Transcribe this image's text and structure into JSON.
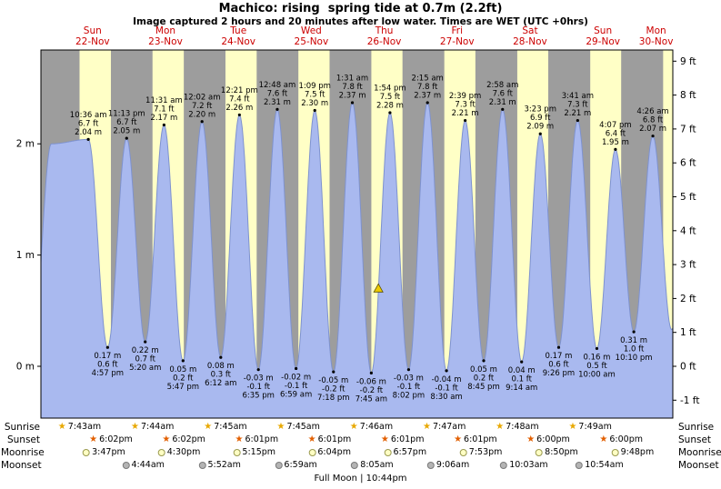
{
  "title": "Machico: rising  spring tide at 0.7m (2.2ft)",
  "subtitle": "Image captured 2 hours and 20 minutes after low water. Times are WET (UTC +0hrs)",
  "footer": "Full Moon | 10:44pm",
  "days": [
    {
      "name": "Sun",
      "date": "22-Nov"
    },
    {
      "name": "Mon",
      "date": "23-Nov"
    },
    {
      "name": "Tue",
      "date": "24-Nov"
    },
    {
      "name": "Wed",
      "date": "25-Nov"
    },
    {
      "name": "Thu",
      "date": "26-Nov"
    },
    {
      "name": "Fri",
      "date": "27-Nov"
    },
    {
      "name": "Sat",
      "date": "28-Nov"
    },
    {
      "name": "Sun",
      "date": "29-Nov"
    },
    {
      "name": "Mon",
      "date": "30-Nov"
    }
  ],
  "chart_data": {
    "type": "area",
    "title": "Machico tide curve 22-Nov to 30-Nov",
    "ylim_m": [
      -0.47,
      2.84
    ],
    "y_axis": {
      "left_unit": "m",
      "right_unit": "ft",
      "left_ticks": [
        {
          "label": "2 m",
          "m": 2
        },
        {
          "label": "1 m",
          "m": 1
        },
        {
          "label": "0 m",
          "m": 0
        }
      ],
      "right_ticks": [
        {
          "label": "9 ft",
          "ft": 9
        },
        {
          "label": "8 ft",
          "ft": 8
        },
        {
          "label": "7 ft",
          "ft": 7
        },
        {
          "label": "6 ft",
          "ft": 6
        },
        {
          "label": "5 ft",
          "ft": 5
        },
        {
          "label": "4 ft",
          "ft": 4
        },
        {
          "label": "3 ft",
          "ft": 3
        },
        {
          "label": "2 ft",
          "ft": 2
        },
        {
          "label": "1 ft",
          "ft": 1
        },
        {
          "label": "0 ft",
          "ft": 0
        },
        {
          "label": "-1 ft",
          "ft": -1
        }
      ]
    },
    "tide_events": [
      {
        "day": 0,
        "type": "high",
        "time": "10:36 am",
        "height_m": 2.04,
        "m_label": "2.04 m",
        "ft_label": "6.7 ft"
      },
      {
        "day": 0,
        "type": "low",
        "time": "4:57 pm",
        "height_m": 0.17,
        "m_label": "0.17 m",
        "ft_label": "0.6 ft"
      },
      {
        "day": 0,
        "type": "high",
        "time": "11:13 pm",
        "height_m": 2.05,
        "m_label": "2.05 m",
        "ft_label": "6.7 ft"
      },
      {
        "day": 1,
        "type": "low",
        "time": "5:20 am",
        "height_m": 0.22,
        "m_label": "0.22 m",
        "ft_label": "0.7 ft"
      },
      {
        "day": 1,
        "type": "high",
        "time": "11:31 am",
        "height_m": 2.17,
        "m_label": "2.17 m",
        "ft_label": "7.1 ft"
      },
      {
        "day": 1,
        "type": "low",
        "time": "5:47 pm",
        "height_m": 0.05,
        "m_label": "0.05 m",
        "ft_label": "0.2 ft"
      },
      {
        "day": 2,
        "type": "high",
        "time": "12:02 am",
        "height_m": 2.2,
        "m_label": "2.20 m",
        "ft_label": "7.2 ft"
      },
      {
        "day": 2,
        "type": "low",
        "time": "6:12 am",
        "height_m": 0.08,
        "m_label": "0.08 m",
        "ft_label": "0.3 ft"
      },
      {
        "day": 2,
        "type": "high",
        "time": "12:21 pm",
        "height_m": 2.26,
        "m_label": "2.26 m",
        "ft_label": "7.4 ft"
      },
      {
        "day": 2,
        "type": "low",
        "time": "6:35 pm",
        "height_m": -0.03,
        "m_label": "-0.03 m",
        "ft_label": "-0.1 ft"
      },
      {
        "day": 3,
        "type": "high",
        "time": "12:48 am",
        "height_m": 2.31,
        "m_label": "2.31 m",
        "ft_label": "7.6 ft"
      },
      {
        "day": 3,
        "type": "low",
        "time": "6:59 am",
        "height_m": -0.02,
        "m_label": "-0.02 m",
        "ft_label": "-0.1 ft"
      },
      {
        "day": 3,
        "type": "high",
        "time": "1:09 pm",
        "height_m": 2.3,
        "m_label": "2.30 m",
        "ft_label": "7.5 ft"
      },
      {
        "day": 3,
        "type": "low",
        "time": "7:18 pm",
        "height_m": -0.05,
        "m_label": "-0.05 m",
        "ft_label": "-0.2 ft"
      },
      {
        "day": 4,
        "type": "high",
        "time": "1:31 am",
        "height_m": 2.37,
        "m_label": "2.37 m",
        "ft_label": "7.8 ft"
      },
      {
        "day": 4,
        "type": "low",
        "time": "7:45 am",
        "height_m": -0.06,
        "m_label": "-0.06 m",
        "ft_label": "-0.2 ft"
      },
      {
        "day": 4,
        "type": "high",
        "time": "1:54 pm",
        "height_m": 2.28,
        "m_label": "2.28 m",
        "ft_label": "7.5 ft"
      },
      {
        "day": 4,
        "type": "low",
        "time": "8:02 pm",
        "height_m": -0.03,
        "m_label": "-0.03 m",
        "ft_label": "-0.1 ft"
      },
      {
        "day": 5,
        "type": "high",
        "time": "2:15 am",
        "height_m": 2.37,
        "m_label": "2.37 m",
        "ft_label": "7.8 ft"
      },
      {
        "day": 5,
        "type": "low",
        "time": "8:30 am",
        "height_m": -0.04,
        "m_label": "-0.04 m",
        "ft_label": "-0.1 ft"
      },
      {
        "day": 5,
        "type": "high",
        "time": "2:39 pm",
        "height_m": 2.21,
        "m_label": "2.21 m",
        "ft_label": "7.3 ft"
      },
      {
        "day": 5,
        "type": "low",
        "time": "8:45 pm",
        "height_m": 0.05,
        "m_label": "0.05 m",
        "ft_label": "0.2 ft"
      },
      {
        "day": 6,
        "type": "high",
        "time": "2:58 am",
        "height_m": 2.31,
        "m_label": "2.31 m",
        "ft_label": "7.6 ft"
      },
      {
        "day": 6,
        "type": "low",
        "time": "9:14 am",
        "height_m": 0.04,
        "m_label": "0.04 m",
        "ft_label": "0.1 ft"
      },
      {
        "day": 6,
        "type": "high",
        "time": "3:23 pm",
        "height_m": 2.09,
        "m_label": "2.09 m",
        "ft_label": "6.9 ft"
      },
      {
        "day": 6,
        "type": "low",
        "time": "9:26 pm",
        "height_m": 0.17,
        "m_label": "0.17 m",
        "ft_label": "0.6 ft"
      },
      {
        "day": 7,
        "type": "high",
        "time": "3:41 am",
        "height_m": 2.21,
        "m_label": "2.21 m",
        "ft_label": "7.3 ft"
      },
      {
        "day": 7,
        "type": "low",
        "time": "10:00 am",
        "height_m": 0.16,
        "m_label": "0.16 m",
        "ft_label": "0.5 ft"
      },
      {
        "day": 7,
        "type": "high",
        "time": "4:07 pm",
        "height_m": 1.95,
        "m_label": "1.95 m",
        "ft_label": "6.4 ft"
      },
      {
        "day": 7,
        "type": "low",
        "time": "10:10 pm",
        "height_m": 0.31,
        "m_label": "0.31 m",
        "ft_label": "1.0 ft"
      },
      {
        "day": 8,
        "type": "high",
        "time": "4:26 am",
        "height_m": 2.07,
        "m_label": "2.07 m",
        "ft_label": "6.8 ft"
      }
    ],
    "edge_events": [
      {
        "t": -7.8,
        "height_m": 0.15
      },
      {
        "t": -1.58,
        "height_m": 2.0
      },
      {
        "t": 202.6,
        "height_m": 0.33
      },
      {
        "t": 208.9,
        "height_m": 1.95
      }
    ],
    "marker": {
      "t_hours": 106.08,
      "height_m": 0.7
    },
    "colors": {
      "day_band": "#ffffc6",
      "night_band": "#9d9d9d",
      "tide_fill": "#a9b9ef",
      "tide_stroke": "#7e92cf",
      "day_label": "#cc0000",
      "marker_fill": "#eecb00",
      "sunrise_icon": "#e8a800",
      "sunset_icon": "#e25f00",
      "moonrise_icon": "#ffffc4",
      "moonset_icon": "#b4b4b4"
    }
  },
  "astro": {
    "rows": [
      {
        "id": "sunrise",
        "label": "Sunrise",
        "icon": "sunrise-icon",
        "events": [
          {
            "day": 0,
            "time": "7:43am"
          },
          {
            "day": 1,
            "time": "7:44am"
          },
          {
            "day": 2,
            "time": "7:45am"
          },
          {
            "day": 3,
            "time": "7:45am"
          },
          {
            "day": 4,
            "time": "7:46am"
          },
          {
            "day": 5,
            "time": "7:47am"
          },
          {
            "day": 6,
            "time": "7:48am"
          },
          {
            "day": 7,
            "time": "7:49am"
          }
        ]
      },
      {
        "id": "sunset",
        "label": "Sunset",
        "icon": "sunset-icon",
        "events": [
          {
            "day": 0,
            "time": "6:02pm"
          },
          {
            "day": 1,
            "time": "6:02pm"
          },
          {
            "day": 2,
            "time": "6:01pm"
          },
          {
            "day": 3,
            "time": "6:01pm"
          },
          {
            "day": 4,
            "time": "6:01pm"
          },
          {
            "day": 5,
            "time": "6:01pm"
          },
          {
            "day": 6,
            "time": "6:00pm"
          },
          {
            "day": 7,
            "time": "6:00pm"
          }
        ]
      },
      {
        "id": "moonrise",
        "label": "Moonrise",
        "icon": "moonrise-icon",
        "events": [
          {
            "day": 0,
            "time": "3:47pm"
          },
          {
            "day": 1,
            "time": "4:30pm"
          },
          {
            "day": 2,
            "time": "5:15pm"
          },
          {
            "day": 3,
            "time": "6:04pm"
          },
          {
            "day": 4,
            "time": "6:57pm"
          },
          {
            "day": 5,
            "time": "7:53pm"
          },
          {
            "day": 6,
            "time": "8:50pm"
          },
          {
            "day": 7,
            "time": "9:48pm"
          }
        ]
      },
      {
        "id": "moonset",
        "label": "Moonset",
        "icon": "moonset-icon",
        "events": [
          {
            "day": 1,
            "time": "4:44am"
          },
          {
            "day": 2,
            "time": "5:52am"
          },
          {
            "day": 3,
            "time": "6:59am"
          },
          {
            "day": 4,
            "time": "8:05am"
          },
          {
            "day": 5,
            "time": "9:06am"
          },
          {
            "day": 6,
            "time": "10:03am"
          },
          {
            "day": 7,
            "time": "10:54am"
          }
        ]
      }
    ]
  }
}
